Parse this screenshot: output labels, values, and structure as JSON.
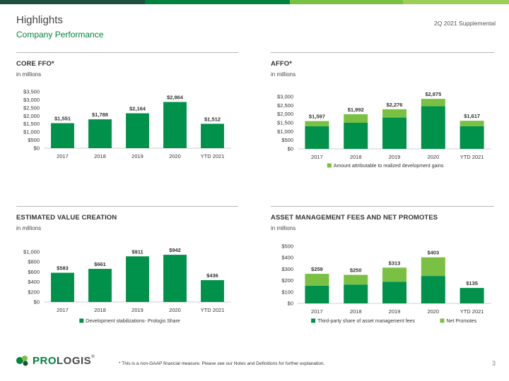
{
  "header": {
    "title": "Highlights",
    "subtitle": "Company Performance",
    "supplemental": "2Q 2021 Supplemental"
  },
  "colors": {
    "dark_green": "#00914a",
    "light_green": "#7ac143",
    "top_bar": [
      "#1e4e3e",
      "#00843d",
      "#7ac143",
      "#9ccf5a"
    ]
  },
  "footer": {
    "note": "* This is a non-GAAP financial measure. Please see our Notes and Definitions for further explanation.",
    "page": "3",
    "logo_pro": "PRO",
    "logo_rest": "LOGIS",
    "logo_reg": "®"
  },
  "chart_data": [
    {
      "id": "core_ffo",
      "type": "bar",
      "title": "CORE FFO*",
      "unit": "in millions",
      "categories": [
        "2017",
        "2018",
        "2019",
        "2020",
        "YTD 2021"
      ],
      "series": [
        {
          "values": [
            1551,
            1788,
            2164,
            2864,
            1512
          ]
        }
      ],
      "data_labels": [
        "$1,551",
        "$1,788",
        "$2,164",
        "$2,864",
        "$1,512"
      ],
      "yticks": [
        "$0",
        "$500",
        "$1,000",
        "$1,500",
        "$2,000",
        "$2,500",
        "$3,000",
        "$3,500"
      ],
      "ylim": [
        0,
        3500
      ],
      "legend": []
    },
    {
      "id": "affo",
      "type": "bar",
      "stacked": true,
      "title": "AFFO*",
      "unit": "in millions",
      "categories": [
        "2017",
        "2018",
        "2019",
        "2020",
        "YTD 2021"
      ],
      "series": [
        {
          "values": [
            1300,
            1500,
            1800,
            2450,
            1300
          ]
        },
        {
          "name": "Amount attributable to realized development gains",
          "values": [
            297,
            492,
            476,
            425,
            317
          ]
        }
      ],
      "data_labels": [
        "$1,597",
        "$1,992",
        "$2,276",
        "$2,875",
        "$1,617"
      ],
      "yticks": [
        "$0",
        "$500",
        "$1,000",
        "$1,500",
        "$2,000",
        "$2,500",
        "$3,000"
      ],
      "ylim": [
        0,
        3000
      ],
      "legend": [
        "Amount attributable to realized development gains"
      ]
    },
    {
      "id": "value_creation",
      "type": "bar",
      "title": "ESTIMATED VALUE CREATION",
      "unit": "in millions",
      "categories": [
        "2017",
        "2018",
        "2019",
        "2020",
        "YTD 2021"
      ],
      "series": [
        {
          "name": "Development stabilizations- Prologis Share",
          "values": [
            583,
            661,
            911,
            942,
            436
          ]
        }
      ],
      "data_labels": [
        "$583",
        "$661",
        "$911",
        "$942",
        "$436"
      ],
      "yticks": [
        "$0",
        "$200",
        "$400",
        "$600",
        "$800",
        "$1,000"
      ],
      "ylim": [
        0,
        1000
      ],
      "legend": [
        "Development stabilizations- Prologis Share"
      ]
    },
    {
      "id": "asset_mgmt",
      "type": "bar",
      "stacked": true,
      "title": "ASSET MANAGEMENT FEES AND NET PROMOTES",
      "unit": "in millions",
      "categories": [
        "2017",
        "2018",
        "2019",
        "2020",
        "YTD 2021"
      ],
      "series": [
        {
          "name": "Third-party share of asset management fees",
          "values": [
            155,
            165,
            190,
            240,
            135
          ]
        },
        {
          "name": "Net Promotes",
          "values": [
            104,
            85,
            123,
            163,
            0
          ]
        }
      ],
      "data_labels": [
        "$259",
        "$250",
        "$313",
        "$403",
        "$135"
      ],
      "yticks": [
        "$0",
        "$100",
        "$200",
        "$300",
        "$400",
        "$500"
      ],
      "ylim": [
        0,
        500
      ],
      "legend": [
        "Third-party share of asset management fees",
        "Net Promotes"
      ]
    }
  ]
}
